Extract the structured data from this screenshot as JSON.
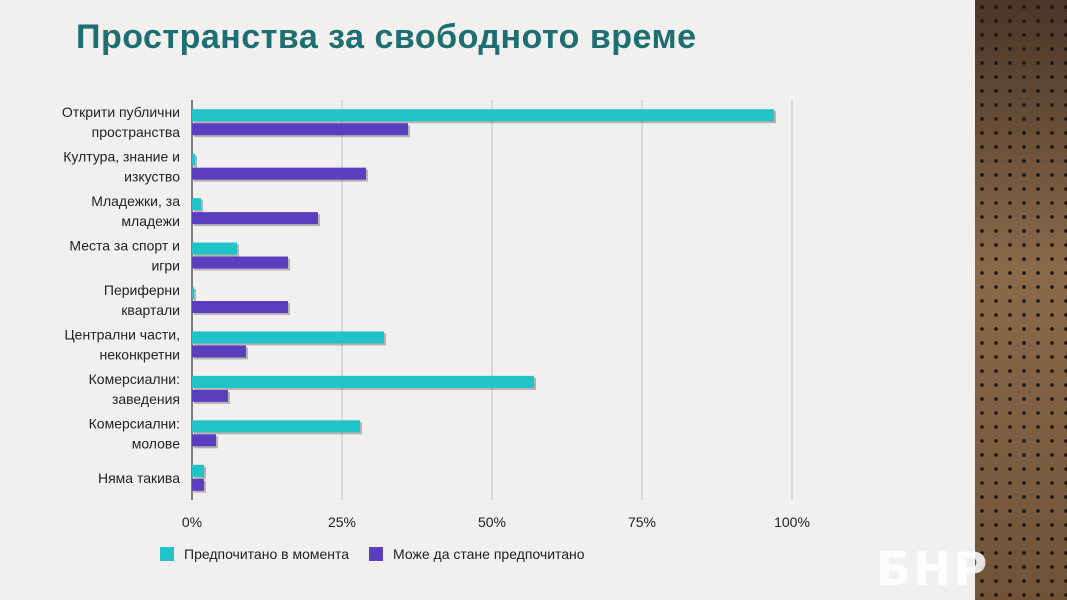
{
  "page": {
    "title": "Пространства за свободното време",
    "logo_text": "БНР"
  },
  "colors": {
    "current": "#1fc3c8",
    "potential": "#5b3ec0",
    "title": "#1d6f72"
  },
  "chart_data": {
    "type": "bar",
    "orientation": "horizontal",
    "title": "Пространства за свободното време",
    "categories": [
      [
        "Открити публични",
        "пространства"
      ],
      [
        "Култура, знание и",
        "изкуство"
      ],
      [
        "Младежки, за",
        "младежи"
      ],
      [
        "Места за спорт и",
        "игри"
      ],
      [
        "Периферни",
        "квартали"
      ],
      [
        "Централни части,",
        "неконкретни"
      ],
      [
        "Комерсиални:",
        "заведения"
      ],
      [
        "Комерсиални:",
        "молове"
      ],
      [
        "Няма такива"
      ]
    ],
    "series": [
      {
        "name": "Предпочитано в момента",
        "values": [
          97,
          0.5,
          1.5,
          7.5,
          0.3,
          32,
          57,
          28,
          2
        ]
      },
      {
        "name": "Може да стане предпочитано",
        "values": [
          36,
          29,
          21,
          16,
          16,
          9,
          6,
          4,
          2
        ]
      }
    ],
    "xlim": [
      0,
      100
    ],
    "ticks": [
      "0%",
      "25%",
      "50%",
      "75%",
      "100%"
    ],
    "grid": true,
    "legend_position": "bottom"
  }
}
